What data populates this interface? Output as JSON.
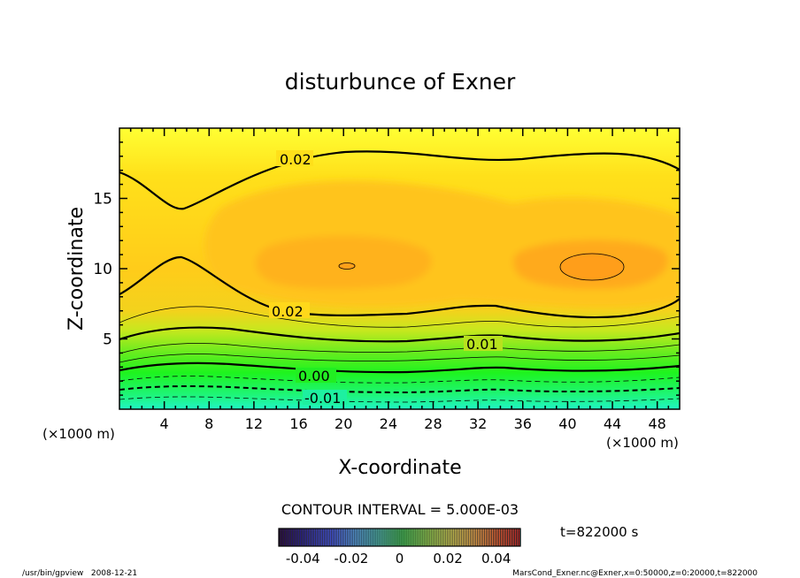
{
  "chart_data": {
    "type": "heatmap",
    "title": "disturbunce of Exner",
    "xlabel": "X-coordinate",
    "ylabel": "Z-coordinate",
    "xunit": "(×1000 m)",
    "xlim": [
      0,
      50
    ],
    "ylim": [
      0,
      20
    ],
    "xticks": [
      "4",
      "8",
      "12",
      "16",
      "20",
      "24",
      "28",
      "32",
      "36",
      "40",
      "44",
      "48"
    ],
    "yticks": [
      "5",
      "10",
      "15"
    ],
    "contour_interval_label": "CONTOUR INTERVAL = 5.000E-03",
    "contour_labels": [
      "0.02",
      "0.02",
      "0.01",
      "0.00",
      "-0.01"
    ],
    "colorbar": {
      "range": [
        -0.05,
        0.05
      ],
      "tick_labels": [
        "-0.04",
        "-0.02",
        "0",
        "0.02",
        "0.04"
      ]
    },
    "time_label": "t=822000 s",
    "footer_left": "/usr/bin/gpview   2008-12-21",
    "footer_right": "MarsCond_Exner.nc@Exner,x=0:50000,z=0:20000,t=822000",
    "grid": false
  }
}
